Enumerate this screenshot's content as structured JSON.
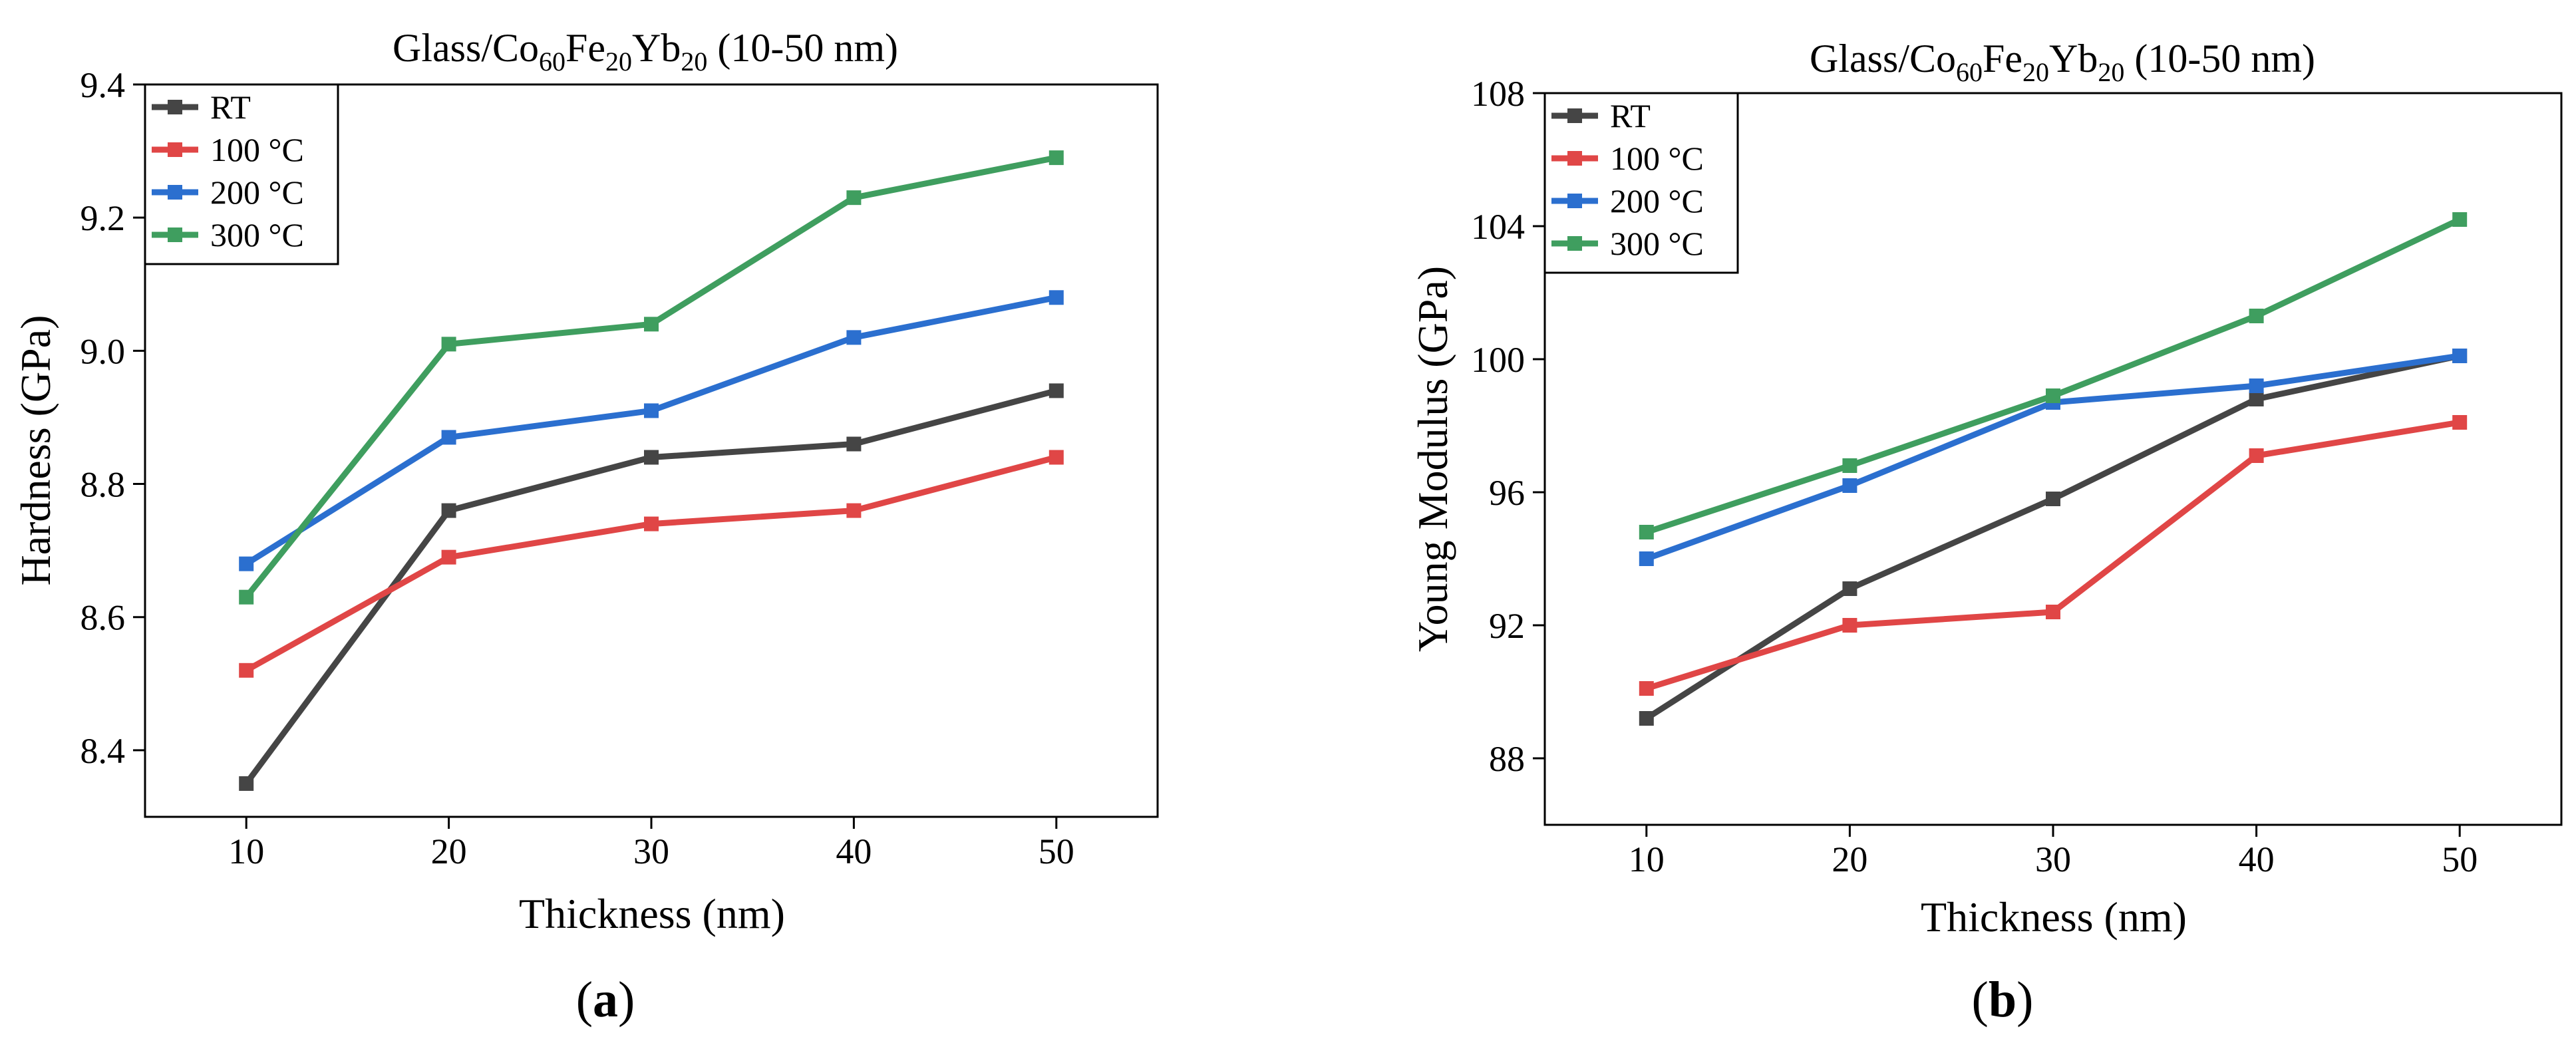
{
  "chart_data": [
    {
      "type": "line",
      "panel_label": "a",
      "title": {
        "main": "Glass/Co",
        "sub1": "60",
        "t1": "Fe",
        "sub2": "20",
        "t2": "Yb",
        "sub3": "20",
        "tail": " (10-50 nm)"
      },
      "xlabel": "Thickness (nm)",
      "ylabel": "Hardness (GPa)",
      "x": [
        10,
        20,
        30,
        40,
        50
      ],
      "xlim": [
        5,
        55
      ],
      "ylim": [
        8.3,
        9.4
      ],
      "xticks": [
        10,
        20,
        30,
        40,
        50
      ],
      "xtick_labels": [
        "10",
        "20",
        "30",
        "40",
        "50"
      ],
      "yticks": [
        8.4,
        8.6,
        8.8,
        9.0,
        9.2,
        9.4
      ],
      "ytick_labels": [
        "8.4",
        "8.6",
        "8.8",
        "9.0",
        "9.2",
        "9.4"
      ],
      "legend_position": "top-left",
      "series": [
        {
          "name": "RT",
          "color": "#454545",
          "values": [
            8.35,
            8.76,
            8.84,
            8.86,
            8.94
          ]
        },
        {
          "name": "100 °C",
          "color": "#e04646",
          "values": [
            8.52,
            8.69,
            8.74,
            8.76,
            8.84
          ]
        },
        {
          "name": "200 °C",
          "color": "#2b6fcf",
          "values": [
            8.68,
            8.87,
            8.91,
            9.02,
            9.08
          ]
        },
        {
          "name": "300 °C",
          "color": "#3f9e5f",
          "values": [
            8.63,
            9.01,
            9.04,
            9.23,
            9.29
          ]
        }
      ]
    },
    {
      "type": "line",
      "panel_label": "b",
      "title": {
        "main": "Glass/Co",
        "sub1": "60",
        "t1": "Fe",
        "sub2": "20",
        "t2": "Yb",
        "sub3": "20",
        "tail": " (10-50 nm)"
      },
      "xlabel": "Thickness (nm)",
      "ylabel": "Young Modulus (GPa)",
      "x": [
        10,
        20,
        30,
        40,
        50
      ],
      "xlim": [
        5,
        55
      ],
      "ylim": [
        86,
        108
      ],
      "xticks": [
        10,
        20,
        30,
        40,
        50
      ],
      "xtick_labels": [
        "10",
        "20",
        "30",
        "40",
        "50"
      ],
      "yticks": [
        88,
        92,
        96,
        100,
        104,
        108
      ],
      "ytick_labels": [
        "88",
        "92",
        "96",
        "100",
        "104",
        "108"
      ],
      "legend_position": "top-left",
      "series": [
        {
          "name": "RT",
          "color": "#454545",
          "values": [
            89.2,
            93.1,
            95.8,
            98.8,
            100.1
          ]
        },
        {
          "name": "100 °C",
          "color": "#e04646",
          "values": [
            90.1,
            92.0,
            92.4,
            97.1,
            98.1
          ]
        },
        {
          "name": "200 °C",
          "color": "#2b6fcf",
          "values": [
            94.0,
            96.2,
            98.7,
            99.2,
            100.1
          ]
        },
        {
          "name": "300 °C",
          "color": "#3f9e5f",
          "values": [
            94.8,
            96.8,
            98.9,
            101.3,
            104.2
          ]
        }
      ]
    }
  ]
}
